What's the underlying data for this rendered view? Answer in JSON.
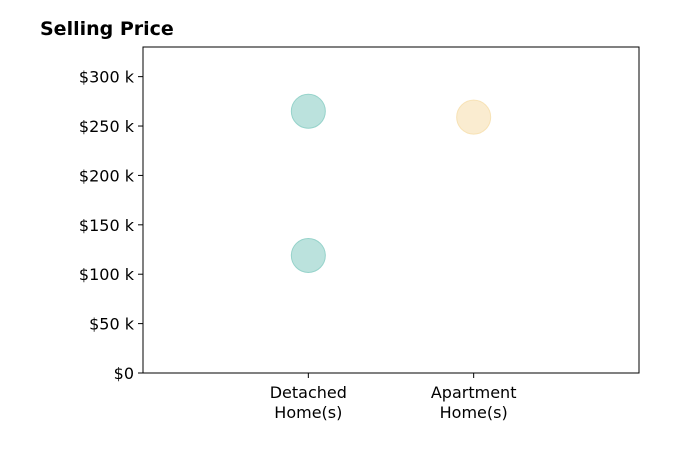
{
  "chart_data": {
    "type": "scatter",
    "title": "Selling Price",
    "xlabel": "",
    "ylabel": "",
    "categories": [
      [
        "Detached",
        "Home(s)"
      ],
      [
        "Apartment",
        "Home(s)"
      ]
    ],
    "x_range": [
      -1,
      2
    ],
    "ylim": [
      0,
      330000
    ],
    "y_ticks": [
      {
        "value": 0,
        "label": "$0"
      },
      {
        "value": 50000,
        "label": "$50 k"
      },
      {
        "value": 100000,
        "label": "$100 k"
      },
      {
        "value": 150000,
        "label": "$150 k"
      },
      {
        "value": 200000,
        "label": "$200 k"
      },
      {
        "value": 250000,
        "label": "$250 k"
      },
      {
        "value": 300000,
        "label": "$300 k"
      }
    ],
    "grid": false,
    "points": [
      {
        "category": 0,
        "value": 265000,
        "color": "#8ecfc6"
      },
      {
        "category": 0,
        "value": 119000,
        "color": "#8ecfc6"
      },
      {
        "category": 1,
        "value": 259000,
        "color": "#f6e0b0"
      }
    ]
  }
}
